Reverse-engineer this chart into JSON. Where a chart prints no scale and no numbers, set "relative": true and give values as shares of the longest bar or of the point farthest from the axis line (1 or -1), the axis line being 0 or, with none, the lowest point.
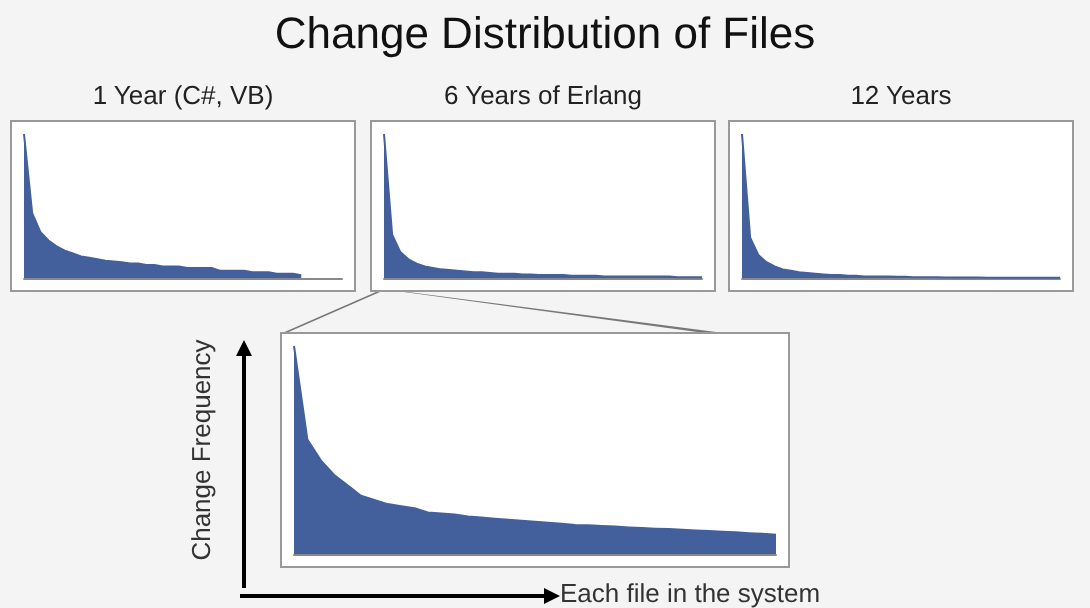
{
  "chart_data": [
    {
      "type": "area",
      "title": "Change Distribution of Files",
      "subtitle": "1 Year (C#, VB)",
      "relative": true,
      "color": "#43609c",
      "categories": [
        null,
        null,
        null,
        null,
        null,
        null,
        null,
        null,
        null,
        null,
        null,
        null,
        null,
        null,
        null,
        null,
        null,
        null,
        null,
        null,
        null,
        null,
        null,
        null,
        null,
        null,
        null,
        null,
        null,
        null,
        null,
        null,
        null,
        null,
        null,
        null,
        null,
        null,
        null,
        null
      ],
      "values": [
        1,
        0.45,
        0.32,
        0.26,
        0.22,
        0.19,
        0.17,
        0.15,
        0.14,
        0.13,
        0.12,
        0.115,
        0.11,
        0.1,
        0.1,
        0.09,
        0.09,
        0.08,
        0.08,
        0.08,
        0.07,
        0.07,
        0.07,
        0.07,
        0.05,
        0.05,
        0.05,
        0.05,
        0.04,
        0.04,
        0.04,
        0.03,
        0.03,
        0.03,
        0.02,
        null,
        null,
        null,
        null,
        null
      ]
    },
    {
      "type": "area",
      "subtitle": "6 Years of Erlang",
      "relative": true,
      "color": "#43609c",
      "categories": [
        null,
        null,
        null,
        null,
        null,
        null,
        null,
        null,
        null,
        null,
        null,
        null,
        null,
        null,
        null,
        null,
        null,
        null,
        null,
        null,
        null,
        null,
        null,
        null,
        null,
        null,
        null,
        null,
        null,
        null,
        null,
        null,
        null,
        null,
        null,
        null,
        null,
        null,
        null,
        null
      ],
      "values": [
        1,
        0.3,
        0.18,
        0.13,
        0.1,
        0.08,
        0.07,
        0.06,
        0.055,
        0.05,
        0.045,
        0.04,
        0.04,
        0.035,
        0.03,
        0.03,
        0.03,
        0.025,
        0.025,
        0.02,
        0.02,
        0.02,
        0.02,
        0.015,
        0.015,
        0.015,
        0.015,
        0.01,
        0.01,
        0.01,
        0.01,
        0.01,
        0.01,
        0.01,
        0.01,
        0.01,
        0.005,
        0.005,
        0.005,
        0.005
      ]
    },
    {
      "type": "area",
      "subtitle": "12 Years",
      "relative": true,
      "color": "#43609c",
      "categories": [
        null,
        null,
        null,
        null,
        null,
        null,
        null,
        null,
        null,
        null,
        null,
        null,
        null,
        null,
        null,
        null,
        null,
        null,
        null,
        null,
        null,
        null,
        null,
        null,
        null,
        null,
        null,
        null,
        null,
        null,
        null,
        null,
        null,
        null,
        null,
        null,
        null,
        null,
        null,
        null
      ],
      "values": [
        1,
        0.28,
        0.16,
        0.11,
        0.08,
        0.06,
        0.05,
        0.04,
        0.035,
        0.03,
        0.025,
        0.02,
        0.02,
        0.015,
        0.015,
        0.01,
        0.01,
        0.01,
        0.01,
        0.008,
        0.008,
        0.006,
        0.006,
        0.005,
        0.005,
        0.004,
        0.004,
        0.003,
        0.003,
        0.003,
        0.002,
        0.002,
        0.002,
        0.002,
        0.001,
        0.001,
        0.001,
        0.001,
        0.001,
        0.001
      ]
    },
    {
      "type": "area",
      "xlabel": "Each file in the system",
      "ylabel": "Change Frequency",
      "relative": true,
      "color": "#43609c",
      "categories": [
        null,
        null,
        null,
        null,
        null,
        null,
        null,
        null,
        null,
        null,
        null,
        null,
        null,
        null,
        null,
        null,
        null,
        null,
        null,
        null,
        null,
        null,
        null,
        null,
        null,
        null,
        null,
        null,
        null,
        null,
        null,
        null,
        null,
        null,
        null,
        null,
        null
      ],
      "values": [
        1,
        0.55,
        0.45,
        0.38,
        0.33,
        0.28,
        0.26,
        0.24,
        0.23,
        0.22,
        0.2,
        0.195,
        0.19,
        0.18,
        0.175,
        0.17,
        0.165,
        0.16,
        0.155,
        0.15,
        0.145,
        0.14,
        0.138,
        0.135,
        0.132,
        0.128,
        0.125,
        0.122,
        0.12,
        0.117,
        0.113,
        0.11,
        0.107,
        0.104,
        0.1,
        0.097,
        0.092
      ]
    }
  ]
}
